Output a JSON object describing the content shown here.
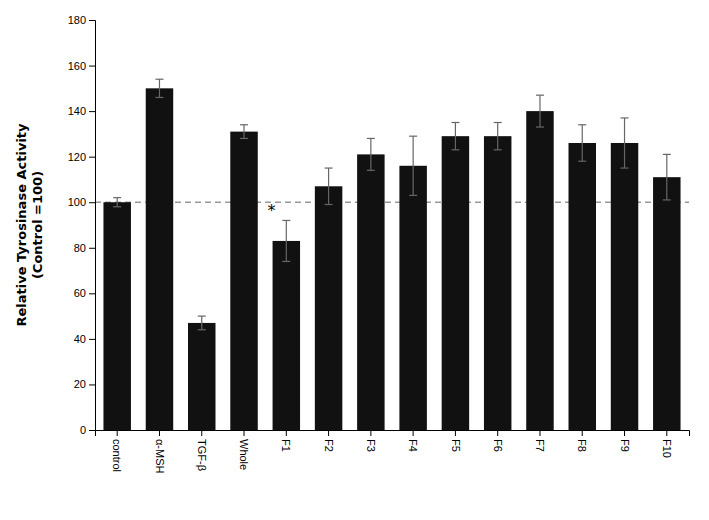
{
  "chart_data": {
    "type": "bar",
    "categories": [
      "control",
      "α-MSH",
      "TGF-β",
      "Whole",
      "F1",
      "F2",
      "F3",
      "F4",
      "F5",
      "F6",
      "F7",
      "F8",
      "F9",
      "F10"
    ],
    "values": [
      100,
      150,
      47,
      131,
      83,
      107,
      121,
      116,
      129,
      129,
      140,
      126,
      126,
      111
    ],
    "errors": [
      2,
      4,
      3,
      3,
      9,
      8,
      7,
      13,
      6,
      6,
      7,
      8,
      11,
      10
    ],
    "color": "#111111",
    "error_color": "#666666",
    "reference_lines": [
      {
        "value": 100,
        "color": "#999999",
        "line_style": "dashed"
      }
    ],
    "annotations": [
      {
        "text": "*",
        "category": "F1"
      }
    ],
    "ylabel": [
      "Relative Tyrosinase Activity",
      "(Control =100)"
    ],
    "ylim": [
      0,
      180
    ],
    "yticks": [
      0,
      20,
      40,
      60,
      80,
      100,
      120,
      140,
      160,
      180
    ],
    "grid": false
  }
}
